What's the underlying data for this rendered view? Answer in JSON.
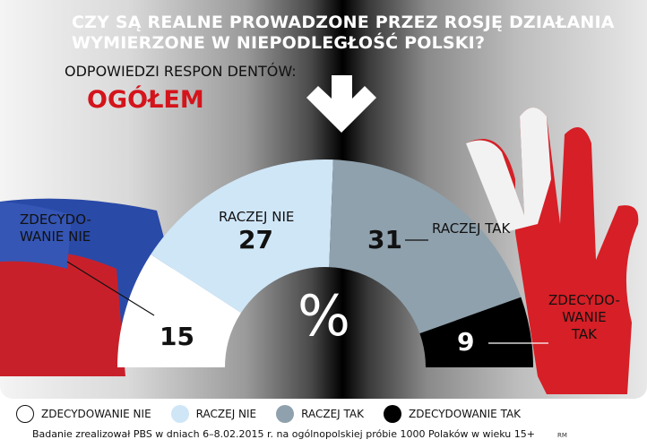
{
  "title_line1": "CZY SĄ REALNE PROWADZONE PRZEZ ROSJĘ DZIAŁANIA",
  "title_line2": "WYMIERZONE W NIEPODLEGŁOŚĆ POLSKI?",
  "subtitle": "ODPOWIEDZI RESPON DENTÓW:",
  "group": "OGÓŁEM",
  "unit": "%",
  "chart_data": {
    "type": "pie",
    "variant": "half-donut",
    "categories": [
      "ZDECYDOWANIE NIE",
      "RACZEJ NIE",
      "RACZEJ TAK",
      "ZDECYDOWANIE TAK"
    ],
    "values": [
      15,
      27,
      31,
      9
    ],
    "colors": [
      "#ffffff",
      "#cfe6f7",
      "#8fa1ad",
      "#000000"
    ],
    "slice_labels": [
      "ZDECYDO-\nWANIE NIE",
      "RACZEJ NIE",
      "RACZEJ TAK",
      "ZDECYDO-\nWANIE\nTAK"
    ],
    "legend": "bottom"
  },
  "footer": "Badanie zrealizował PBS w dniach 6–8.02.2015 r. na ogólnopolskiej próbie 1000 Polaków w wieku 15+",
  "credit": "RM"
}
